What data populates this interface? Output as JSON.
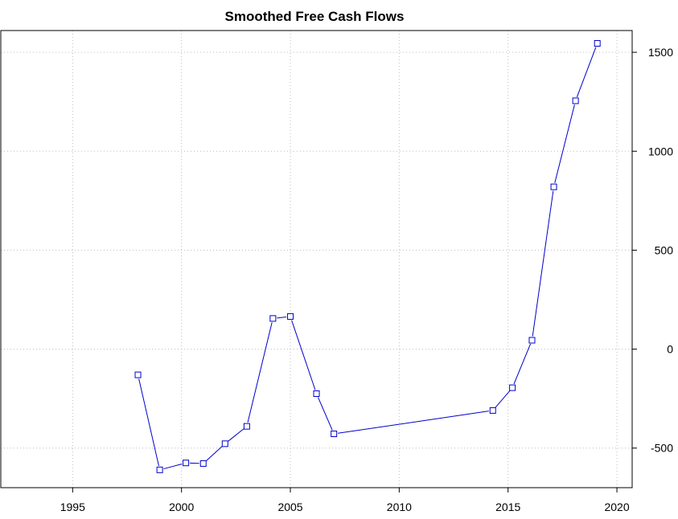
{
  "chart_data": {
    "type": "line",
    "title": "Smoothed Free Cash Flows",
    "xlabel": "",
    "ylabel": "",
    "xlim": [
      1991.7,
      2020.7
    ],
    "ylim": [
      -700,
      1610
    ],
    "x_ticks": [
      1995,
      2000,
      2005,
      2010,
      2015,
      2020
    ],
    "y_ticks": [
      -500,
      0,
      500,
      1000,
      1500
    ],
    "y_axis_side": "right",
    "grid": true,
    "series": [
      {
        "color": "#0000cc",
        "marker": "square",
        "points": [
          {
            "x": 1998.0,
            "y": -130
          },
          {
            "x": 1999.0,
            "y": -610
          },
          {
            "x": 2000.2,
            "y": -575
          },
          {
            "x": 2001.0,
            "y": -578
          },
          {
            "x": 2002.0,
            "y": -478
          },
          {
            "x": 2003.0,
            "y": -390
          },
          {
            "x": 2004.2,
            "y": 155
          },
          {
            "x": 2005.0,
            "y": 165
          },
          {
            "x": 2006.2,
            "y": -225
          },
          {
            "x": 2007.0,
            "y": -428
          },
          {
            "x": 2014.3,
            "y": -310
          },
          {
            "x": 2015.2,
            "y": -195
          },
          {
            "x": 2016.1,
            "y": 45
          },
          {
            "x": 2017.1,
            "y": 820
          },
          {
            "x": 2018.1,
            "y": 1255
          },
          {
            "x": 2019.1,
            "y": 1545
          }
        ]
      }
    ]
  }
}
